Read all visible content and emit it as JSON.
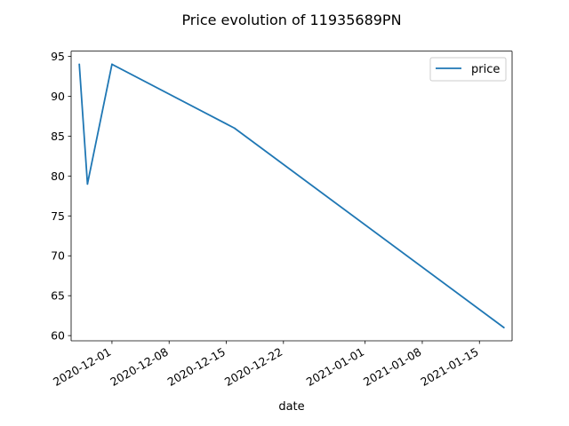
{
  "chart_data": {
    "type": "line",
    "title": "Price evolution of 11935689PN",
    "xlabel": "date",
    "ylabel": "",
    "x_ticks": [
      "2020-12-01",
      "2020-12-08",
      "2020-12-15",
      "2020-12-22",
      "2021-01-01",
      "2021-01-08",
      "2021-01-15"
    ],
    "y_ticks": [
      60,
      65,
      70,
      75,
      80,
      85,
      90,
      95
    ],
    "xlim": [
      "2020-11-26",
      "2021-01-19"
    ],
    "ylim": [
      59.35,
      95.65
    ],
    "grid": false,
    "legend": "top-right",
    "series": [
      {
        "name": "price",
        "color": "#1f77b4",
        "x": [
          "2020-11-27",
          "2020-11-28",
          "2020-12-01",
          "2020-12-16",
          "2021-01-18"
        ],
        "y": [
          94,
          79,
          94,
          86,
          61
        ]
      }
    ]
  }
}
